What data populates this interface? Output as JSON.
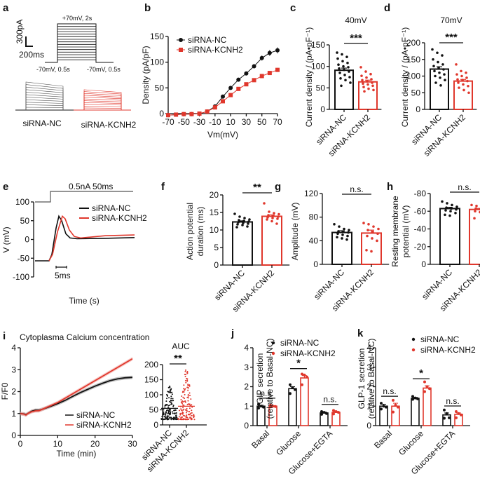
{
  "figure": {
    "colors": {
      "nc": "#111111",
      "kcnh2": "#e0372c",
      "kcnh2_light": "#f1a49e"
    },
    "group_labels": [
      "siRNA-NC",
      "siRNA-KCNH2"
    ]
  },
  "chart_data": [
    {
      "id": "a",
      "panel_label": "a",
      "type": "line",
      "title": "",
      "protocol": {
        "step_label": "+70mV, 2s",
        "hold_left": "-70mV, 0.5s",
        "hold_right": "-70mV, 0.5s",
        "sweeps": 15
      },
      "scalebar": {
        "y_label": "300pA",
        "x_label": "200ms"
      },
      "trace_labels": [
        "siRNA-NC",
        "siRNA-KCNH2"
      ]
    },
    {
      "id": "b",
      "panel_label": "b",
      "type": "line",
      "xlabel": "Vm(mV)",
      "ylabel": "Density (pA/pF)",
      "x": [
        -70,
        -60,
        -50,
        -40,
        -30,
        -20,
        -10,
        0,
        10,
        20,
        30,
        40,
        50,
        60,
        70
      ],
      "xticks": [
        "-70",
        "-50",
        "-30",
        "-10",
        "10",
        "30",
        "50",
        "70"
      ],
      "yticks": [
        "0",
        "50",
        "100",
        "150"
      ],
      "ylim": [
        0,
        150
      ],
      "xlim": [
        -70,
        70
      ],
      "series": [
        {
          "name": "siRNA-NC",
          "values": [
            -3,
            -2,
            -1,
            -1,
            0,
            4,
            14,
            33,
            50,
            66,
            78,
            92,
            108,
            118,
            123
          ],
          "err": [
            1,
            1,
            1,
            1,
            1,
            1,
            2,
            2,
            2,
            3,
            3,
            4,
            5,
            6,
            6
          ]
        },
        {
          "name": "siRNA-KCNH2",
          "values": [
            -3,
            -2,
            -1,
            -1,
            0,
            4,
            12,
            24,
            36,
            48,
            57,
            65,
            73,
            79,
            85
          ],
          "err": [
            1,
            1,
            1,
            1,
            1,
            1,
            2,
            2,
            2,
            3,
            3,
            3,
            4,
            4,
            4
          ]
        }
      ]
    },
    {
      "id": "c",
      "panel_label": "c",
      "type": "bar",
      "title": "40mV",
      "ylabel": "Current density / (pA•pF⁻¹)",
      "categories": [
        "siRNA-NC",
        "siRNA-KCNH2"
      ],
      "values": [
        91,
        64
      ],
      "sem": [
        5,
        4
      ],
      "points": [
        [
          132,
          128,
          122,
          118,
          112,
          108,
          104,
          100,
          98,
          95,
          92,
          88,
          85,
          80,
          75,
          72,
          68,
          62,
          55
        ],
        [
          98,
          88,
          82,
          78,
          74,
          70,
          68,
          65,
          62,
          60,
          58,
          55,
          52,
          48,
          45,
          42
        ]
      ],
      "ylim": [
        0,
        150
      ],
      "yticks": [
        "0",
        "50",
        "100",
        "150"
      ],
      "significance": "***"
    },
    {
      "id": "d",
      "panel_label": "d",
      "type": "bar",
      "title": "70mV",
      "ylabel": "Current density / (pA•pF⁻¹)",
      "categories": [
        "siRNA-NC",
        "siRNA-KCNH2"
      ],
      "values": [
        121,
        85
      ],
      "sem": [
        7,
        5
      ],
      "points": [
        [
          180,
          170,
          162,
          150,
          142,
          135,
          130,
          125,
          120,
          115,
          110,
          105,
          100,
          95,
          88,
          80,
          72
        ],
        [
          135,
          115,
          110,
          105,
          100,
          95,
          90,
          88,
          85,
          80,
          75,
          70,
          65,
          58,
          50
        ]
      ],
      "ylim": [
        0,
        200
      ],
      "yticks": [
        "0",
        "50",
        "100",
        "150",
        "200"
      ],
      "significance": "***"
    },
    {
      "id": "e",
      "panel_label": "e",
      "type": "line",
      "xlabel": "Time (s)",
      "ylabel": "V (mV)",
      "yticks": [
        "-100",
        "-50",
        "0",
        "50",
        "100"
      ],
      "ylim": [
        -100,
        100
      ],
      "stim_label": "0.5nA  50ms",
      "scalebar_label": "5ms",
      "series": [
        {
          "name": "siRNA-NC",
          "peak": 62
        },
        {
          "name": "siRNA-KCNH2",
          "peak": 62
        }
      ]
    },
    {
      "id": "f",
      "panel_label": "f",
      "type": "bar",
      "ylabel": "Action potential duration (ms)",
      "ylabel_lines": [
        "Action potential",
        "duration (ms)"
      ],
      "categories": [
        "siRNA-NC",
        "siRNA-KCNH2"
      ],
      "values": [
        12.3,
        13.9
      ],
      "sem": [
        0.3,
        0.4
      ],
      "points": [
        [
          14.6,
          13.8,
          13.4,
          13.0,
          12.8,
          12.6,
          12.4,
          12.2,
          12.0,
          11.8,
          11.6,
          11.4,
          11.0,
          10.8
        ],
        [
          17.6,
          15.2,
          14.8,
          14.5,
          14.2,
          14.0,
          13.8,
          13.6,
          13.4,
          13.2,
          13.0,
          12.5,
          11.8
        ]
      ],
      "ylim": [
        0,
        20
      ],
      "yticks": [
        "0",
        "5",
        "10",
        "15",
        "20"
      ],
      "significance": "**"
    },
    {
      "id": "g",
      "panel_label": "g",
      "type": "bar",
      "ylabel": "Amplitude (mV)",
      "categories": [
        "siRNA-NC",
        "siRNA-KCNH2"
      ],
      "values": [
        54,
        53
      ],
      "sem": [
        3,
        5
      ],
      "points": [
        [
          68,
          64,
          60,
          58,
          56,
          55,
          54,
          52,
          50,
          48,
          46,
          44,
          42
        ],
        [
          70,
          68,
          64,
          60,
          58,
          55,
          52,
          48,
          44,
          40,
          24,
          22
        ]
      ],
      "ylim": [
        0,
        120
      ],
      "yticks": [
        "0",
        "40",
        "80",
        "120"
      ],
      "significance": "n.s."
    },
    {
      "id": "h",
      "panel_label": "h",
      "type": "bar",
      "ylabel": "Resting membrane potential (mV)",
      "ylabel_lines": [
        "Resting membrane",
        "potential (mV)"
      ],
      "categories": [
        "siRNA-NC",
        "siRNA-KCNH2"
      ],
      "values": [
        -63,
        -62
      ],
      "sem": [
        1.5,
        1.2
      ],
      "points": [
        [
          -71,
          -69,
          -67,
          -65,
          -64,
          -63,
          -62,
          -61,
          -60,
          -58,
          -56,
          -55
        ],
        [
          -67,
          -66,
          -65,
          -64,
          -63,
          -62,
          -61,
          -60,
          -59,
          -57,
          -52
        ]
      ],
      "ylim": [
        0,
        -80
      ],
      "yticks": [
        "0",
        "-20",
        "-40",
        "-60",
        "-80"
      ],
      "significance": "n.s."
    },
    {
      "id": "i",
      "panel_label": "i",
      "type": "line",
      "title": "Cytoplasma Calcium concentration",
      "xlabel": "Time (min)",
      "ylabel": "F/F0",
      "xticks": [
        "0",
        "10",
        "20",
        "30"
      ],
      "yticks": [
        "0",
        "1",
        "2",
        "3",
        "4"
      ],
      "xlim": [
        0,
        30
      ],
      "ylim": [
        0,
        4
      ],
      "series": [
        {
          "name": "siRNA-NC",
          "x": [
            0,
            1,
            1.5,
            2,
            3,
            4,
            5,
            6,
            8,
            10,
            12,
            14,
            16,
            18,
            20,
            22,
            24,
            26,
            28,
            30
          ],
          "values": [
            1.0,
            0.98,
            0.95,
            1.0,
            1.1,
            1.15,
            1.15,
            1.2,
            1.32,
            1.45,
            1.6,
            1.78,
            1.95,
            2.1,
            2.25,
            2.38,
            2.5,
            2.58,
            2.63,
            2.65
          ],
          "band": 0.08
        },
        {
          "name": "siRNA-KCNH2",
          "x": [
            0,
            1,
            1.5,
            2,
            3,
            4,
            5,
            6,
            8,
            10,
            12,
            14,
            16,
            18,
            20,
            22,
            24,
            26,
            28,
            30
          ],
          "values": [
            1.0,
            0.97,
            0.93,
            1.0,
            1.08,
            1.12,
            1.13,
            1.2,
            1.35,
            1.5,
            1.7,
            1.9,
            2.1,
            2.3,
            2.5,
            2.7,
            2.9,
            3.1,
            3.3,
            3.5
          ],
          "band": 0.08
        }
      ]
    },
    {
      "id": "i-auc",
      "panel_label": "",
      "type": "scatter",
      "title": "AUC",
      "categories": [
        "siRNA-NC",
        "siRNA-KCNH2"
      ],
      "values": [
        55,
        62
      ],
      "ylim": [
        0,
        200
      ],
      "yticks": [
        "0",
        "50",
        "100",
        "150",
        "200"
      ],
      "range": [
        [
          18,
          135
        ],
        [
          18,
          185
        ]
      ],
      "significance": "**"
    },
    {
      "id": "j",
      "panel_label": "j",
      "type": "bar",
      "ylabel": "GIP secretion (relative to Basal-NC)",
      "ylabel_lines": [
        "GIP secretion",
        "(relative to Basal-NC)"
      ],
      "categories": [
        "Basal",
        "Glucose",
        "Glucose+EGTA"
      ],
      "series": [
        {
          "name": "siRNA-NC",
          "values": [
            1.0,
            1.9,
            0.65
          ],
          "sem": [
            0.05,
            0.1,
            0.05
          ],
          "points": [
            [
              1.1,
              1.0,
              0.95,
              0.9
            ],
            [
              2.1,
              1.95,
              1.85,
              1.65
            ],
            [
              0.72,
              0.68,
              0.62,
              0.58
            ]
          ]
        },
        {
          "name": "siRNA-KCNH2",
          "values": [
            1.0,
            2.45,
            0.68
          ],
          "sem": [
            0.03,
            0.12,
            0.05
          ],
          "points": [
            [
              1.05,
              1.0,
              0.98,
              0.96
            ],
            [
              2.65,
              2.6,
              2.5,
              2.1
            ],
            [
              0.78,
              0.72,
              0.68,
              0.6
            ]
          ]
        }
      ],
      "ylim": [
        0,
        4
      ],
      "yticks": [
        "0",
        "1",
        "2",
        "3",
        "4"
      ],
      "significance": [
        "n.s.",
        "*",
        "n.s."
      ],
      "legend": "top-right"
    },
    {
      "id": "k",
      "panel_label": "k",
      "type": "bar",
      "ylabel": "GLP-1 secretion (relative to Basal-NC)",
      "ylabel_lines": [
        "GLP-1 secretion",
        "(relative to Basal-NC)"
      ],
      "categories": [
        "Basal",
        "Glucose",
        "Glucose+EGTA"
      ],
      "series": [
        {
          "name": "siRNA-NC",
          "values": [
            1.0,
            1.4,
            0.55
          ],
          "sem": [
            0.1,
            0.05,
            0.1
          ],
          "points": [
            [
              1.15,
              1.0,
              0.95,
              0.85
            ],
            [
              1.5,
              1.42,
              1.38,
              1.35
            ],
            [
              0.8,
              0.62,
              0.4,
              0.38
            ]
          ]
        },
        {
          "name": "siRNA-KCNH2",
          "values": [
            1.0,
            1.93,
            0.58
          ],
          "sem": [
            0.15,
            0.12,
            0.07
          ],
          "points": [
            [
              1.3,
              1.05,
              0.95,
              0.7
            ],
            [
              2.25,
              2.0,
              1.9,
              1.75
            ],
            [
              0.72,
              0.62,
              0.55,
              0.4
            ]
          ]
        }
      ],
      "ylim": [
        0,
        4
      ],
      "yticks": [
        "0",
        "1",
        "2",
        "3",
        "4"
      ],
      "significance": [
        "n.s.",
        "*",
        "n.s."
      ],
      "legend": "top-right"
    }
  ]
}
